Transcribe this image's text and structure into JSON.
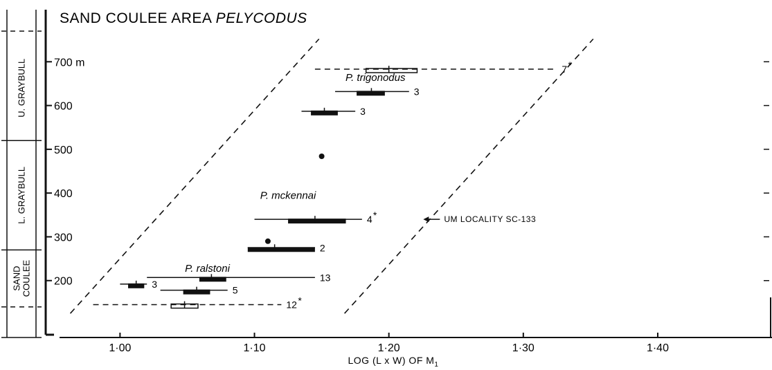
{
  "chart_data": {
    "type": "scatter",
    "title": {
      "plain": "SAND COULEE AREA ",
      "italic": "PELYCODUS"
    },
    "xlabel": {
      "pre": "LOG (L x W)  OF  M",
      "sub": "1"
    },
    "ylabel": "",
    "xlim": [
      0.955,
      1.485
    ],
    "ylim": [
      70,
      770
    ],
    "x_ticks": [
      {
        "value": 1.0,
        "label": "1·00"
      },
      {
        "value": 1.1,
        "label": "1·10"
      },
      {
        "value": 1.2,
        "label": "1·20"
      },
      {
        "value": 1.3,
        "label": "1·30"
      },
      {
        "value": 1.4,
        "label": "1·40"
      }
    ],
    "y_ticks": [
      {
        "value": 200,
        "label": "200"
      },
      {
        "value": 300,
        "label": "300"
      },
      {
        "value": 400,
        "label": "400"
      },
      {
        "value": 500,
        "label": "500"
      },
      {
        "value": 600,
        "label": "600"
      },
      {
        "value": 700,
        "label": "700 m"
      }
    ],
    "stratigraphy": [
      {
        "name": "SAND COULEE",
        "lines": [
          "SAND",
          "COULEE"
        ],
        "from": 140,
        "to": 270
      },
      {
        "name": "L. GRAYBULL",
        "lines": [
          "L. GRAYBULL"
        ],
        "from": 270,
        "to": 520
      },
      {
        "name": "U. GRAYBULL",
        "lines": [
          "U. GRAYBULL"
        ],
        "from": 520,
        "to": 770
      }
    ],
    "species_labels": [
      {
        "text": "P. ralstoni",
        "x": 1.065,
        "y": 220
      },
      {
        "text": "P. mckennai",
        "x": 1.125,
        "y": 387
      },
      {
        "text": "P. trigonodus",
        "x": 1.19,
        "y": 656
      }
    ],
    "samples": [
      {
        "y": 145,
        "range": [
          0.98,
          1.12
        ],
        "mean": 1.048,
        "box": [
          1.038,
          1.058
        ],
        "n": "12",
        "starred": true,
        "style": "dashed-open"
      },
      {
        "y": 192,
        "range": [
          1.0,
          1.02
        ],
        "mean": 1.012,
        "box": [
          1.006,
          1.018
        ],
        "n": "3",
        "starred": false,
        "style": "solid"
      },
      {
        "y": 178,
        "range": [
          1.03,
          1.08
        ],
        "mean": 1.057,
        "box": [
          1.047,
          1.067
        ],
        "n": "5",
        "starred": false,
        "style": "solid"
      },
      {
        "y": 207,
        "range": [
          1.02,
          1.145
        ],
        "mean": 1.068,
        "box": [
          1.059,
          1.079
        ],
        "n": "13",
        "starred": false,
        "style": "solid"
      },
      {
        "y": 275,
        "range": [
          1.095,
          1.145
        ],
        "mean": 1.115,
        "box": [
          1.095,
          1.145
        ],
        "n": "2",
        "starred": false,
        "style": "solid"
      },
      {
        "y": 340,
        "range": [
          1.1,
          1.18
        ],
        "mean": 1.145,
        "box": [
          1.125,
          1.168
        ],
        "n": "4",
        "starred": true,
        "style": "solid"
      },
      {
        "y": 587,
        "range": [
          1.135,
          1.175
        ],
        "mean": 1.152,
        "box": [
          1.142,
          1.162
        ],
        "n": "3",
        "starred": false,
        "style": "solid"
      },
      {
        "y": 632,
        "range": [
          1.16,
          1.215
        ],
        "mean": 1.187,
        "box": [
          1.176,
          1.197
        ],
        "n": "3",
        "starred": false,
        "style": "solid"
      },
      {
        "y": 683,
        "range": [
          1.145,
          1.325
        ],
        "mean": 1.2,
        "box": [
          1.183,
          1.221
        ],
        "n": "7",
        "starred": true,
        "style": "dashed-open"
      }
    ],
    "points": [
      {
        "x": 1.15,
        "y": 484
      },
      {
        "x": 1.11,
        "y": 290
      }
    ],
    "envelope_lines": [
      {
        "from": [
          0.963,
          125
        ],
        "to": [
          1.148,
          752
        ]
      },
      {
        "from": [
          1.167,
          125
        ],
        "to": [
          1.352,
          752
        ]
      }
    ],
    "annotation": {
      "text": "UM  LOCALITY  SC-133",
      "x": 1.24,
      "y": 340
    }
  }
}
